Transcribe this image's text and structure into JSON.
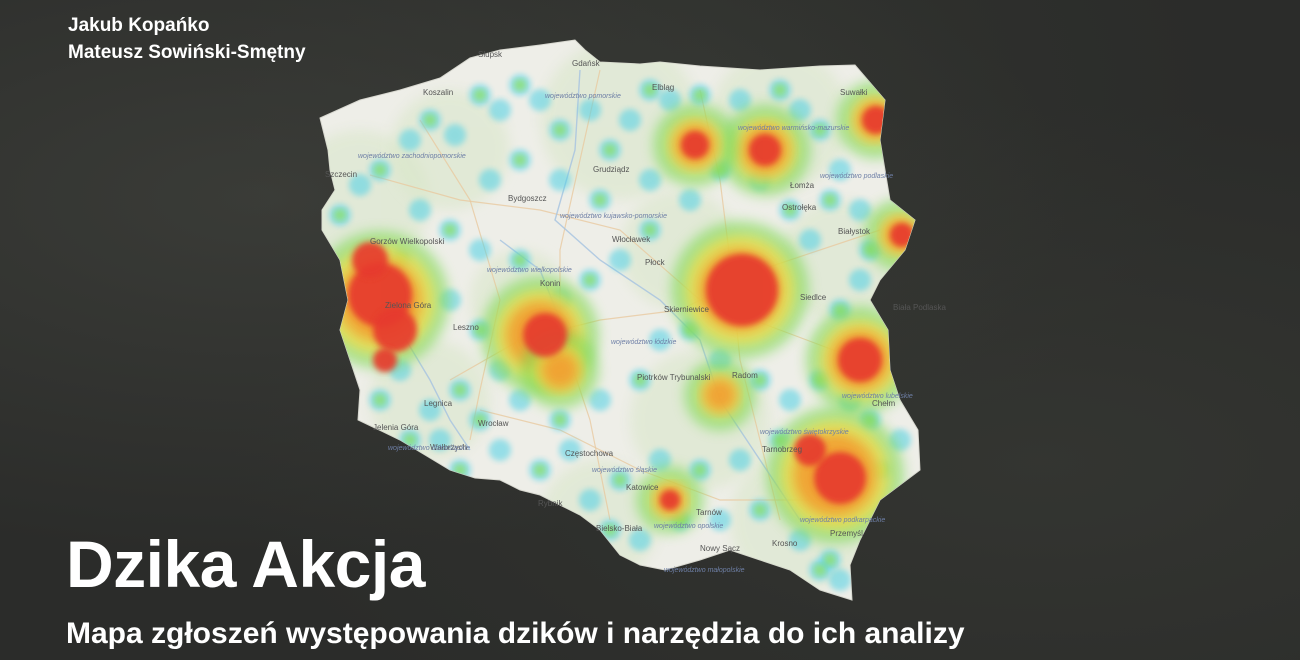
{
  "authors": [
    "Jakub Kopańko",
    "Mateusz Sowiński-Smętny"
  ],
  "title": "Dzika Akcja",
  "subtitle": "Mapa zgłoszeń występowania dzików i narzędzia do ich analizy",
  "map": {
    "cities": [
      "Słupsk",
      "Koszalin",
      "Gdańsk",
      "Elbląg",
      "Suwałki",
      "Szczecin",
      "Grudziądz",
      "Bydgoszcz",
      "Łomża",
      "Ostrołęka",
      "Białystok",
      "Gorzów Wielkopolski",
      "Włocławek",
      "Płock",
      "Konin",
      "Skierniewice",
      "Siedlce",
      "Leszno",
      "Zielona Góra",
      "Piotrków Trybunalski",
      "Radom",
      "Legnica",
      "Wrocław",
      "Chełm",
      "Jelenia Góra",
      "Wałbrzych",
      "Częstochowa",
      "Tarnobrzeg",
      "Katowice",
      "Rybnik",
      "Bielsko-Biała",
      "Tarnów",
      "Nowy Sącz",
      "Krosno",
      "Przemyśl",
      "Biała Podlaska"
    ],
    "regions": [
      "województwo pomorskie",
      "województwo warmińsko-mazurskie",
      "województwo zachodniopomorskie",
      "województwo kujawsko-pomorskie",
      "województwo podlaskie",
      "województwo wielkopolskie",
      "województwo łódzkie",
      "województwo lubelskie",
      "województwo dolnośląskie",
      "województwo opolskie",
      "województwo świętokrzyskie",
      "województwo śląskie",
      "województwo małopolskie",
      "województwo podkarpackie"
    ]
  }
}
